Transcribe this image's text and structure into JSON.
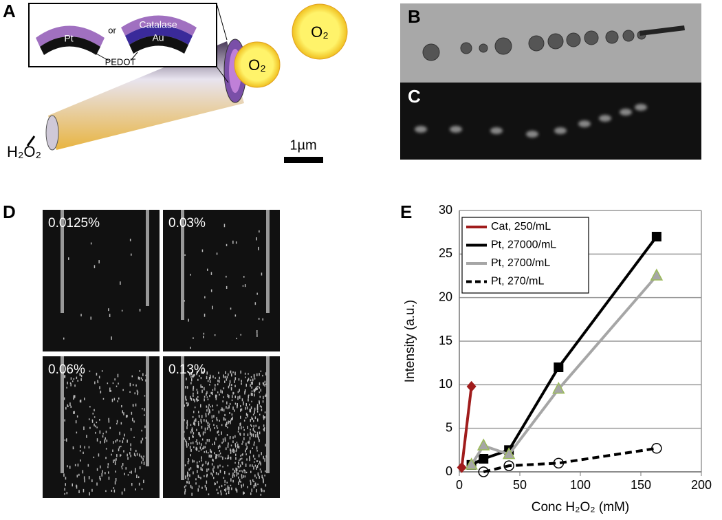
{
  "panels": {
    "a": {
      "label": "A",
      "inset": {
        "pt": "Pt",
        "or": "or",
        "catalase": "Catalase",
        "au": "Au",
        "pedot": "PEDOT"
      },
      "oxygen_1": "O₂",
      "oxygen_2": "O₂",
      "fuel": "H₂O₂",
      "scale_bar": "1µm"
    },
    "b": {
      "label": "B"
    },
    "c": {
      "label": "C"
    },
    "d": {
      "label": "D",
      "images": [
        "0.0125%",
        "0.03%",
        "0.06%",
        "0.13%"
      ]
    },
    "e": {
      "label": "E"
    }
  },
  "chart_data": {
    "type": "line",
    "x_label": "Conc H₂O₂ (mM)",
    "y_label": "Intensity (a.u.)",
    "xlim": [
      0,
      200
    ],
    "xticks": [
      0,
      50,
      100,
      150,
      200
    ],
    "ylim": [
      0,
      30
    ],
    "yticks": [
      0,
      5,
      10,
      15,
      20,
      25,
      30
    ],
    "grid": true,
    "legend": "upper-left",
    "series": [
      {
        "name": "Cat, 250/mL",
        "color": "#a01c1c",
        "marker": "diamond",
        "x": [
          2,
          10
        ],
        "values": [
          0.5,
          9.8
        ]
      },
      {
        "name": "Pt, 27000/mL",
        "color": "#000000",
        "marker": "square",
        "x": [
          10,
          20,
          41,
          82,
          163
        ],
        "values": [
          0.8,
          1.5,
          2.5,
          12,
          27
        ]
      },
      {
        "name": "Pt, 2700/mL",
        "color": "#a6a6a6",
        "marker": "triangle",
        "x": [
          10,
          20,
          41,
          82,
          163
        ],
        "values": [
          0.8,
          3,
          2,
          9.5,
          22.5
        ]
      },
      {
        "name": "Pt, 270/mL",
        "color": "#000000",
        "marker": "circle",
        "dashed": true,
        "x": [
          20,
          41,
          82,
          163
        ],
        "values": [
          0,
          0.7,
          1,
          2.7
        ]
      }
    ]
  }
}
